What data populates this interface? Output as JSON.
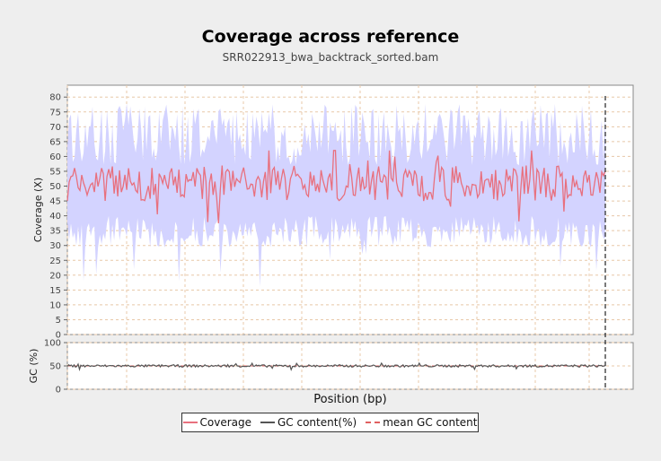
{
  "title": "Coverage across reference",
  "subtitle": "SRR022913_bwa_backtrack_sorted.bam",
  "colors": {
    "coverage": "#e8707e",
    "band": "#d3d3ff",
    "gc": "#555555",
    "mean_gc": "#e06060",
    "grid": "#e8c8a8",
    "marker": "#333333"
  },
  "chart_data": [
    {
      "type": "line",
      "ylabel": "Coverage (X)",
      "ylim": [
        0,
        84
      ],
      "yticks": [
        0,
        5,
        10,
        15,
        20,
        25,
        30,
        35,
        40,
        45,
        50,
        55,
        60,
        65,
        70,
        75,
        80
      ],
      "series": [
        {
          "name": "Coverage",
          "mean": 51,
          "range": [
            37,
            62
          ],
          "points": 300
        }
      ],
      "std_band": {
        "upper_range": [
          57,
          78
        ],
        "lower_range": [
          16,
          40
        ]
      },
      "grid": true
    },
    {
      "type": "line",
      "ylabel": "GC (%)",
      "ylim": [
        0,
        100
      ],
      "yticks": [
        0,
        50,
        100
      ],
      "series": [
        {
          "name": "GC content(%)",
          "mean": 50,
          "range": [
            42,
            56
          ]
        },
        {
          "name": "mean GC content",
          "value": 50
        }
      ],
      "grid": true
    }
  ],
  "xlabel": "Position (bp)",
  "legend": {
    "items": [
      "Coverage",
      "GC content(%)",
      "mean GC content"
    ],
    "placement": "bottom"
  }
}
